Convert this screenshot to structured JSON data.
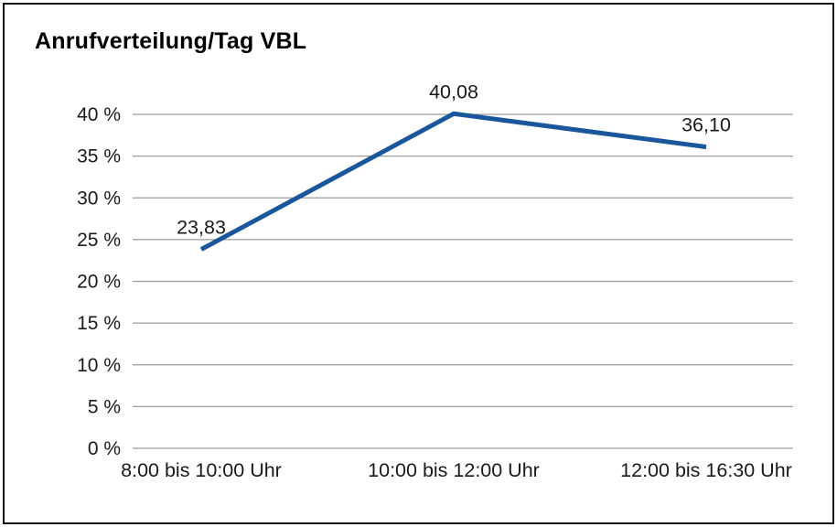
{
  "chart_data": {
    "type": "line",
    "title": "Anrufverteilung/Tag VBL",
    "categories": [
      "8:00 bis 10:00 Uhr",
      "10:00 bis 12:00 Uhr",
      "12:00 bis 16:30 Uhr"
    ],
    "values": [
      23.83,
      40.08,
      36.1
    ],
    "data_labels": [
      "23,83",
      "40,08",
      "36,10"
    ],
    "xlabel": "",
    "ylabel": "",
    "ylim": [
      0,
      40
    ],
    "ytick_values": [
      0,
      5,
      10,
      15,
      20,
      25,
      30,
      35,
      40
    ],
    "ytick_labels": [
      "0 %",
      "5 %",
      "10 %",
      "15 %",
      "20 %",
      "25 %",
      "30 %",
      "35 %",
      "40 %"
    ],
    "grid": "horizontal",
    "legend": "none",
    "line_color": "#1A569B",
    "grid_color": "#9d9d9d",
    "frame_color": "#141414"
  }
}
